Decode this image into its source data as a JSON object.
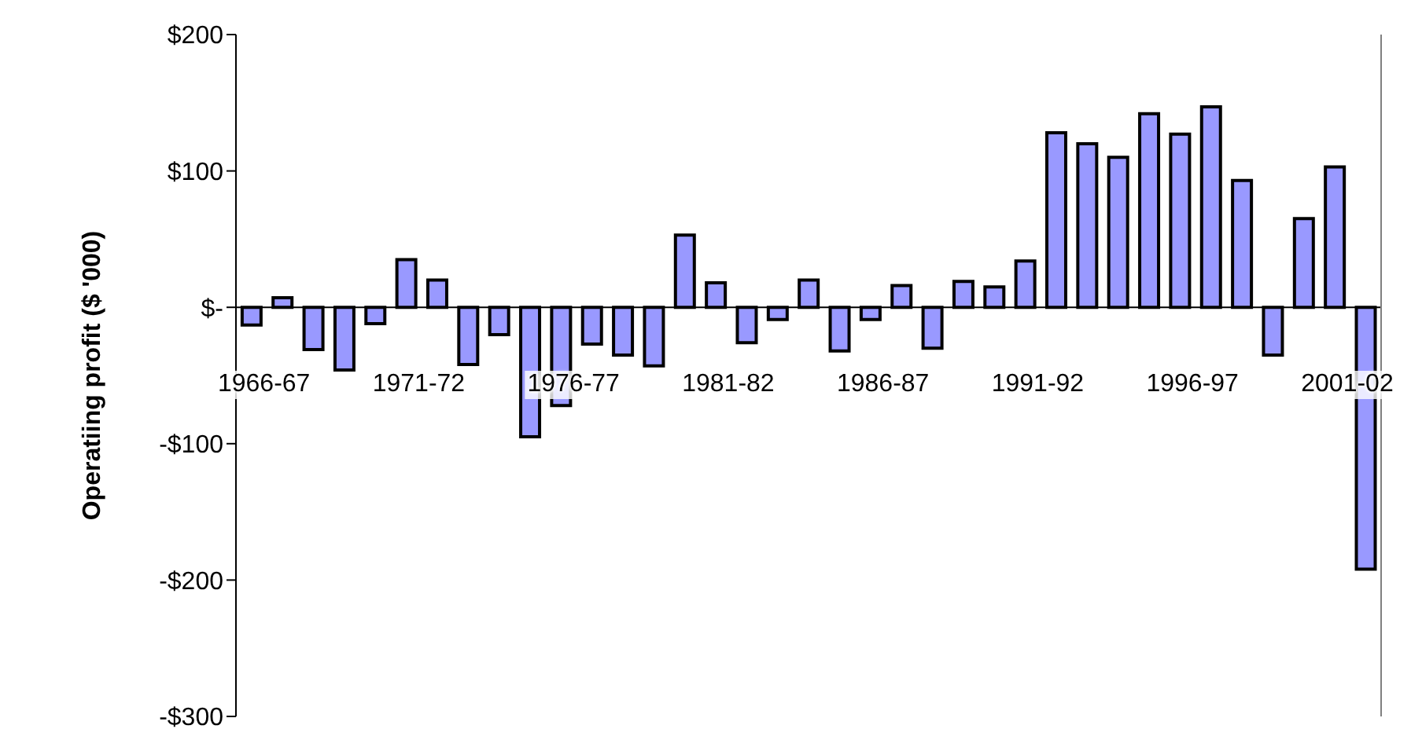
{
  "chart_data": {
    "type": "bar",
    "ylabel": "Operatiing profit ($ '000)",
    "categories": [
      "1966-67",
      null,
      null,
      null,
      null,
      "1971-72",
      null,
      null,
      null,
      null,
      "1976-77",
      null,
      null,
      null,
      null,
      "1981-82",
      null,
      null,
      null,
      null,
      "1986-87",
      null,
      null,
      null,
      null,
      "1991-92",
      null,
      null,
      null,
      null,
      "1996-97",
      null,
      null,
      null,
      null,
      "2001-02",
      null
    ],
    "values": [
      -13,
      7,
      -31,
      -46,
      -12,
      35,
      20,
      -42,
      -20,
      -95,
      -72,
      -27,
      -35,
      -43,
      53,
      18,
      -26,
      -9,
      20,
      -32,
      -9,
      16,
      -30,
      19,
      15,
      34,
      128,
      120,
      110,
      142,
      127,
      147,
      93,
      -35,
      65,
      103,
      -192
    ],
    "color": "#9999ff",
    "ylim": [
      -300,
      200
    ],
    "yticks": [
      {
        "value": 200,
        "label": "$200"
      },
      {
        "value": 100,
        "label": "$100"
      },
      {
        "value": 0,
        "label": "$-"
      },
      {
        "value": -100,
        "label": "-$100"
      },
      {
        "value": -200,
        "label": "-$200"
      },
      {
        "value": -300,
        "label": "-$300"
      }
    ],
    "grid": false,
    "legend": false
  }
}
